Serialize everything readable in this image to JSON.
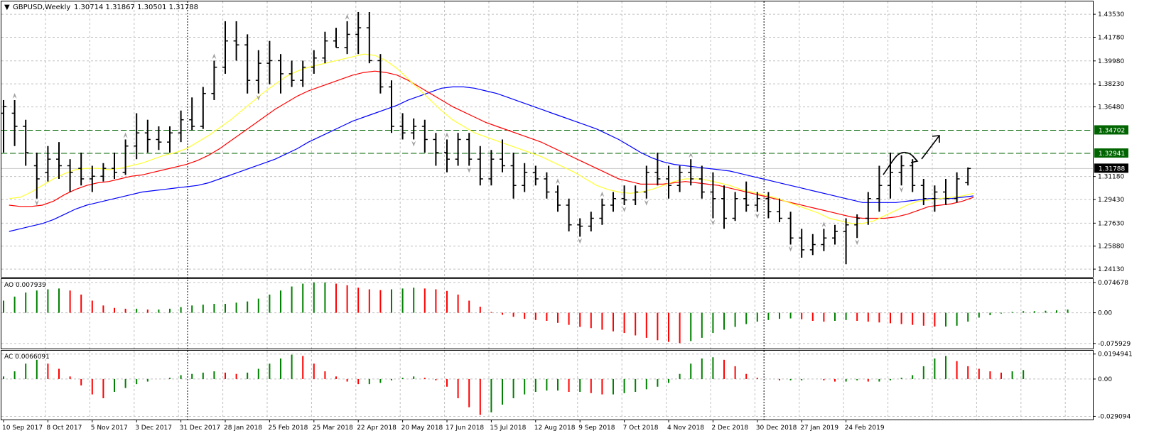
{
  "window": {
    "symbol_title": "GBPUSD,Weekly",
    "ohlc": "1.30714 1.31867 1.30501 1.31788",
    "dropdown_glyph": "▼"
  },
  "colors": {
    "background": "#ffffff",
    "grid": "#c0c0c0",
    "bars": "#000000",
    "ma_fast": "#ffff33",
    "ma_mid": "#ff0000",
    "ma_slow": "#0000ff",
    "level_lines": "#006400",
    "ao_up": "#008000",
    "ao_down": "#ff0000",
    "price_badge": "#000000",
    "level_badge": "#006400",
    "fractal": "#a0a0a0"
  },
  "main_axis": {
    "ticks": [
      "1.43530",
      "1.41780",
      "1.39980",
      "1.38230",
      "1.36480",
      "1.34702",
      "1.32941",
      "1.31180",
      "1.29430",
      "1.27630",
      "1.25880",
      "1.24130"
    ],
    "tick_values": [
      1.4353,
      1.4178,
      1.3998,
      1.3823,
      1.3648,
      1.34702,
      1.32941,
      1.3118,
      1.2943,
      1.2763,
      1.2588,
      1.2413
    ],
    "current_price": "1.31788",
    "current_price_value": 1.31788,
    "levels": [
      {
        "label": "1.34702",
        "value": 1.34702
      },
      {
        "label": "1.32941",
        "value": 1.32941
      }
    ],
    "ylim": [
      1.2365,
      1.444
    ]
  },
  "ao_panel": {
    "label": "AO 0.007939",
    "ticks": [
      "0.074678",
      "0.00",
      "-0.075929"
    ],
    "tick_values": [
      0.074678,
      0,
      -0.075929
    ],
    "ylim": [
      -0.085,
      0.08
    ],
    "values": [
      0.03,
      0.04,
      0.05,
      0.055,
      0.058,
      0.06,
      0.055,
      0.045,
      0.03,
      0.018,
      0.012,
      0.01,
      0.01,
      0.008,
      0.008,
      0.01,
      0.014,
      0.018,
      0.02,
      0.022,
      0.022,
      0.025,
      0.028,
      0.035,
      0.045,
      0.055,
      0.065,
      0.072,
      0.075,
      0.075,
      0.072,
      0.068,
      0.062,
      0.058,
      0.056,
      0.058,
      0.06,
      0.062,
      0.06,
      0.058,
      0.054,
      0.045,
      0.03,
      0.015,
      0.002,
      -0.005,
      -0.01,
      -0.015,
      -0.018,
      -0.02,
      -0.025,
      -0.03,
      -0.035,
      -0.038,
      -0.042,
      -0.046,
      -0.05,
      -0.056,
      -0.062,
      -0.068,
      -0.072,
      -0.075,
      -0.07,
      -0.062,
      -0.05,
      -0.042,
      -0.035,
      -0.028,
      -0.022,
      -0.018,
      -0.015,
      -0.014,
      -0.016,
      -0.02,
      -0.022,
      -0.02,
      -0.018,
      -0.02,
      -0.022,
      -0.024,
      -0.026,
      -0.028,
      -0.03,
      -0.032,
      -0.034,
      -0.034,
      -0.032,
      -0.022,
      -0.012,
      -0.006,
      -0.002,
      0.002,
      0.004,
      0.004,
      0.005,
      0.006,
      0.008
    ]
  },
  "ac_panel": {
    "label": "AC 0.0066091",
    "ticks": [
      "0.0194941",
      "0.00",
      "-0.029094"
    ],
    "tick_values": [
      0.0194941,
      0,
      -0.029094
    ],
    "ylim": [
      -0.0305,
      0.021
    ],
    "values": [
      0.002,
      0.006,
      0.012,
      0.015,
      0.012,
      0.008,
      0.002,
      -0.005,
      -0.012,
      -0.015,
      -0.01,
      -0.007,
      -0.004,
      -0.002,
      0,
      0.001,
      0.003,
      0.004,
      0.005,
      0.006,
      0.005,
      0.004,
      0.005,
      0.008,
      0.012,
      0.016,
      0.019,
      0.018,
      0.012,
      0.006,
      0.002,
      -0.002,
      -0.004,
      -0.004,
      -0.003,
      -0.001,
      0.001,
      0.002,
      0.001,
      -0.001,
      -0.006,
      -0.015,
      -0.022,
      -0.028,
      -0.026,
      -0.02,
      -0.015,
      -0.012,
      -0.01,
      -0.009,
      -0.009,
      -0.01,
      -0.01,
      -0.011,
      -0.012,
      -0.012,
      -0.011,
      -0.01,
      -0.008,
      -0.006,
      -0.003,
      0.004,
      0.012,
      0.016,
      0.017,
      0.015,
      0.01,
      0.004,
      0.001,
      0,
      -0.001,
      -0.001,
      -0.001,
      0,
      -0.001,
      -0.002,
      -0.002,
      -0.001,
      -0.002,
      -0.002,
      -0.001,
      0.001,
      0.003,
      0.01,
      0.016,
      0.018,
      0.014,
      0.01,
      0.008,
      0.006,
      0.005,
      0.006,
      0.007
    ]
  },
  "time_axis": {
    "labels": [
      {
        "text": "10 Sep 2017",
        "bar": 0
      },
      {
        "text": "8 Oct 2017",
        "bar": 4
      },
      {
        "text": "5 Nov 2017",
        "bar": 8
      },
      {
        "text": "3 Dec 2017",
        "bar": 12
      },
      {
        "text": "31 Dec 2017",
        "bar": 16
      },
      {
        "text": "28 Jan 2018",
        "bar": 20
      },
      {
        "text": "25 Feb 2018",
        "bar": 24
      },
      {
        "text": "25 Mar 2018",
        "bar": 28
      },
      {
        "text": "22 Apr 2018",
        "bar": 32
      },
      {
        "text": "20 May 2018",
        "bar": 36
      },
      {
        "text": "17 Jun 2018",
        "bar": 40
      },
      {
        "text": "15 Jul 2018",
        "bar": 44
      },
      {
        "text": "12 Aug 2018",
        "bar": 48
      },
      {
        "text": "9 Sep 2018",
        "bar": 52
      },
      {
        "text": "7 Oct 2018",
        "bar": 56
      },
      {
        "text": "4 Nov 2018",
        "bar": 60
      },
      {
        "text": "2 Dec 2018",
        "bar": 64
      },
      {
        "text": "30 Dec 2018",
        "bar": 68
      },
      {
        "text": "27 Jan 2019",
        "bar": 72
      },
      {
        "text": "24 Feb 2019",
        "bar": 76
      }
    ],
    "separators_at_bars": [
      16.6,
      68.6
    ]
  },
  "chart_data": {
    "type": "ohlc",
    "timeframe": "Weekly",
    "bars": [
      {
        "o": 1.36,
        "h": 1.37,
        "l": 1.33,
        "c": 1.365
      },
      {
        "o": 1.36,
        "h": 1.37,
        "l": 1.335,
        "c": 1.35
      },
      {
        "o": 1.35,
        "h": 1.355,
        "l": 1.32,
        "c": 1.33
      },
      {
        "o": 1.32,
        "h": 1.33,
        "l": 1.295,
        "c": 1.31
      },
      {
        "o": 1.315,
        "h": 1.335,
        "l": 1.308,
        "c": 1.325
      },
      {
        "o": 1.325,
        "h": 1.338,
        "l": 1.31,
        "c": 1.32
      },
      {
        "o": 1.32,
        "h": 1.325,
        "l": 1.3,
        "c": 1.315
      },
      {
        "o": 1.318,
        "h": 1.33,
        "l": 1.305,
        "c": 1.31
      },
      {
        "o": 1.31,
        "h": 1.32,
        "l": 1.3,
        "c": 1.312
      },
      {
        "o": 1.312,
        "h": 1.322,
        "l": 1.308,
        "c": 1.318
      },
      {
        "o": 1.318,
        "h": 1.33,
        "l": 1.31,
        "c": 1.315
      },
      {
        "o": 1.315,
        "h": 1.34,
        "l": 1.313,
        "c": 1.335
      },
      {
        "o": 1.335,
        "h": 1.36,
        "l": 1.325,
        "c": 1.345
      },
      {
        "o": 1.345,
        "h": 1.355,
        "l": 1.33,
        "c": 1.34
      },
      {
        "o": 1.34,
        "h": 1.35,
        "l": 1.332,
        "c": 1.338
      },
      {
        "o": 1.338,
        "h": 1.35,
        "l": 1.33,
        "c": 1.345
      },
      {
        "o": 1.345,
        "h": 1.362,
        "l": 1.338,
        "c": 1.355
      },
      {
        "o": 1.355,
        "h": 1.372,
        "l": 1.347,
        "c": 1.35
      },
      {
        "o": 1.35,
        "h": 1.38,
        "l": 1.348,
        "c": 1.375
      },
      {
        "o": 1.375,
        "h": 1.4,
        "l": 1.37,
        "c": 1.395
      },
      {
        "o": 1.395,
        "h": 1.43,
        "l": 1.39,
        "c": 1.415
      },
      {
        "o": 1.415,
        "h": 1.43,
        "l": 1.4,
        "c": 1.412
      },
      {
        "o": 1.412,
        "h": 1.42,
        "l": 1.375,
        "c": 1.385
      },
      {
        "o": 1.385,
        "h": 1.408,
        "l": 1.375,
        "c": 1.398
      },
      {
        "o": 1.398,
        "h": 1.415,
        "l": 1.382,
        "c": 1.4
      },
      {
        "o": 1.4,
        "h": 1.405,
        "l": 1.375,
        "c": 1.39
      },
      {
        "o": 1.39,
        "h": 1.4,
        "l": 1.38,
        "c": 1.385
      },
      {
        "o": 1.385,
        "h": 1.4,
        "l": 1.38,
        "c": 1.395
      },
      {
        "o": 1.395,
        "h": 1.408,
        "l": 1.39,
        "c": 1.402
      },
      {
        "o": 1.402,
        "h": 1.422,
        "l": 1.398,
        "c": 1.415
      },
      {
        "o": 1.415,
        "h": 1.425,
        "l": 1.41,
        "c": 1.41
      },
      {
        "o": 1.41,
        "h": 1.43,
        "l": 1.405,
        "c": 1.42
      },
      {
        "o": 1.42,
        "h": 1.437,
        "l": 1.405,
        "c": 1.425
      },
      {
        "o": 1.425,
        "h": 1.437,
        "l": 1.398,
        "c": 1.4
      },
      {
        "o": 1.4,
        "h": 1.405,
        "l": 1.375,
        "c": 1.38
      },
      {
        "o": 1.38,
        "h": 1.385,
        "l": 1.345,
        "c": 1.35
      },
      {
        "o": 1.35,
        "h": 1.36,
        "l": 1.34,
        "c": 1.345
      },
      {
        "o": 1.345,
        "h": 1.356,
        "l": 1.34,
        "c": 1.35
      },
      {
        "o": 1.35,
        "h": 1.355,
        "l": 1.33,
        "c": 1.34
      },
      {
        "o": 1.34,
        "h": 1.345,
        "l": 1.32,
        "c": 1.33
      },
      {
        "o": 1.33,
        "h": 1.34,
        "l": 1.315,
        "c": 1.325
      },
      {
        "o": 1.325,
        "h": 1.345,
        "l": 1.32,
        "c": 1.34
      },
      {
        "o": 1.34,
        "h": 1.345,
        "l": 1.32,
        "c": 1.325
      },
      {
        "o": 1.325,
        "h": 1.335,
        "l": 1.305,
        "c": 1.31
      },
      {
        "o": 1.31,
        "h": 1.332,
        "l": 1.305,
        "c": 1.325
      },
      {
        "o": 1.325,
        "h": 1.34,
        "l": 1.315,
        "c": 1.32
      },
      {
        "o": 1.32,
        "h": 1.33,
        "l": 1.295,
        "c": 1.305
      },
      {
        "o": 1.305,
        "h": 1.322,
        "l": 1.3,
        "c": 1.315
      },
      {
        "o": 1.315,
        "h": 1.32,
        "l": 1.305,
        "c": 1.31
      },
      {
        "o": 1.31,
        "h": 1.315,
        "l": 1.295,
        "c": 1.3
      },
      {
        "o": 1.3,
        "h": 1.305,
        "l": 1.285,
        "c": 1.29
      },
      {
        "o": 1.29,
        "h": 1.295,
        "l": 1.27,
        "c": 1.275
      },
      {
        "o": 1.275,
        "h": 1.28,
        "l": 1.266,
        "c": 1.274
      },
      {
        "o": 1.274,
        "h": 1.285,
        "l": 1.27,
        "c": 1.28
      },
      {
        "o": 1.28,
        "h": 1.295,
        "l": 1.275,
        "c": 1.29
      },
      {
        "o": 1.29,
        "h": 1.3,
        "l": 1.285,
        "c": 1.295
      },
      {
        "o": 1.295,
        "h": 1.305,
        "l": 1.29,
        "c": 1.294
      },
      {
        "o": 1.294,
        "h": 1.305,
        "l": 1.29,
        "c": 1.3
      },
      {
        "o": 1.3,
        "h": 1.32,
        "l": 1.295,
        "c": 1.315
      },
      {
        "o": 1.315,
        "h": 1.33,
        "l": 1.305,
        "c": 1.31
      },
      {
        "o": 1.31,
        "h": 1.32,
        "l": 1.295,
        "c": 1.305
      },
      {
        "o": 1.305,
        "h": 1.32,
        "l": 1.3,
        "c": 1.315
      },
      {
        "o": 1.315,
        "h": 1.325,
        "l": 1.305,
        "c": 1.31
      },
      {
        "o": 1.31,
        "h": 1.32,
        "l": 1.295,
        "c": 1.3
      },
      {
        "o": 1.3,
        "h": 1.315,
        "l": 1.28,
        "c": 1.295
      },
      {
        "o": 1.295,
        "h": 1.305,
        "l": 1.272,
        "c": 1.28
      },
      {
        "o": 1.28,
        "h": 1.3,
        "l": 1.278,
        "c": 1.295
      },
      {
        "o": 1.295,
        "h": 1.308,
        "l": 1.285,
        "c": 1.29
      },
      {
        "o": 1.29,
        "h": 1.3,
        "l": 1.285,
        "c": 1.295
      },
      {
        "o": 1.295,
        "h": 1.3,
        "l": 1.28,
        "c": 1.285
      },
      {
        "o": 1.285,
        "h": 1.295,
        "l": 1.277,
        "c": 1.28
      },
      {
        "o": 1.28,
        "h": 1.285,
        "l": 1.26,
        "c": 1.265
      },
      {
        "o": 1.265,
        "h": 1.272,
        "l": 1.25,
        "c": 1.256
      },
      {
        "o": 1.256,
        "h": 1.268,
        "l": 1.252,
        "c": 1.26
      },
      {
        "o": 1.26,
        "h": 1.272,
        "l": 1.255,
        "c": 1.265
      },
      {
        "o": 1.265,
        "h": 1.275,
        "l": 1.26,
        "c": 1.27
      },
      {
        "o": 1.27,
        "h": 1.28,
        "l": 1.245,
        "c": 1.275
      },
      {
        "o": 1.275,
        "h": 1.283,
        "l": 1.265,
        "c": 1.28
      },
      {
        "o": 1.28,
        "h": 1.3,
        "l": 1.275,
        "c": 1.295
      },
      {
        "o": 1.295,
        "h": 1.32,
        "l": 1.285,
        "c": 1.305
      },
      {
        "o": 1.305,
        "h": 1.33,
        "l": 1.295,
        "c": 1.315
      },
      {
        "o": 1.315,
        "h": 1.328,
        "l": 1.305,
        "c": 1.32
      },
      {
        "o": 1.32,
        "h": 1.325,
        "l": 1.3,
        "c": 1.305
      },
      {
        "o": 1.305,
        "h": 1.31,
        "l": 1.29,
        "c": 1.295
      },
      {
        "o": 1.295,
        "h": 1.305,
        "l": 1.285,
        "c": 1.3
      },
      {
        "o": 1.3,
        "h": 1.31,
        "l": 1.29,
        "c": 1.295
      },
      {
        "o": 1.295,
        "h": 1.315,
        "l": 1.292,
        "c": 1.31
      },
      {
        "o": 1.3071,
        "h": 1.3187,
        "l": 1.305,
        "c": 1.3179
      }
    ],
    "ma_fast": [
      1.295,
      1.296,
      1.3,
      1.305,
      1.31,
      1.314,
      1.317,
      1.318,
      1.318,
      1.317,
      1.318,
      1.32,
      1.322,
      1.325,
      1.328,
      1.33,
      1.333,
      1.338,
      1.343,
      1.349,
      1.355,
      1.362,
      1.369,
      1.376,
      1.382,
      1.388,
      1.392,
      1.395,
      1.397,
      1.399,
      1.401,
      1.403,
      1.405,
      1.404,
      1.4,
      1.394,
      1.386,
      1.378,
      1.37,
      1.362,
      1.355,
      1.35,
      1.345,
      1.342,
      1.339,
      1.336,
      1.333,
      1.33,
      1.327,
      1.323,
      1.319,
      1.315,
      1.31,
      1.305,
      1.302,
      1.3,
      1.299,
      1.3,
      1.302,
      1.305,
      1.308,
      1.31,
      1.31,
      1.309,
      1.307,
      1.305,
      1.302,
      1.3,
      1.298,
      1.296,
      1.293,
      1.29,
      1.287,
      1.284,
      1.28,
      1.278,
      1.276,
      1.276,
      1.278,
      1.282,
      1.286,
      1.29,
      1.293,
      1.294,
      1.295,
      1.296,
      1.297,
      1.299
    ],
    "ma_mid": [
      1.29,
      1.289,
      1.289,
      1.29,
      1.293,
      1.298,
      1.302,
      1.305,
      1.307,
      1.308,
      1.31,
      1.312,
      1.313,
      1.315,
      1.317,
      1.319,
      1.321,
      1.324,
      1.328,
      1.333,
      1.339,
      1.345,
      1.351,
      1.357,
      1.363,
      1.368,
      1.373,
      1.377,
      1.38,
      1.383,
      1.386,
      1.389,
      1.391,
      1.392,
      1.391,
      1.389,
      1.385,
      1.38,
      1.375,
      1.37,
      1.365,
      1.361,
      1.357,
      1.353,
      1.35,
      1.347,
      1.344,
      1.341,
      1.338,
      1.334,
      1.33,
      1.326,
      1.322,
      1.318,
      1.314,
      1.31,
      1.308,
      1.306,
      1.306,
      1.306,
      1.307,
      1.308,
      1.307,
      1.306,
      1.305,
      1.303,
      1.301,
      1.299,
      1.297,
      1.295,
      1.293,
      1.291,
      1.289,
      1.287,
      1.285,
      1.283,
      1.281,
      1.28,
      1.28,
      1.28,
      1.281,
      1.283,
      1.286,
      1.289,
      1.29,
      1.291,
      1.293,
      1.296
    ],
    "ma_slow": [
      1.27,
      1.272,
      1.274,
      1.276,
      1.279,
      1.283,
      1.287,
      1.29,
      1.292,
      1.294,
      1.296,
      1.298,
      1.3,
      1.301,
      1.302,
      1.303,
      1.304,
      1.305,
      1.307,
      1.31,
      1.313,
      1.316,
      1.319,
      1.322,
      1.325,
      1.329,
      1.333,
      1.338,
      1.342,
      1.346,
      1.35,
      1.354,
      1.357,
      1.36,
      1.363,
      1.366,
      1.37,
      1.373,
      1.376,
      1.379,
      1.38,
      1.38,
      1.379,
      1.377,
      1.375,
      1.372,
      1.369,
      1.366,
      1.363,
      1.36,
      1.357,
      1.354,
      1.351,
      1.348,
      1.344,
      1.34,
      1.335,
      1.33,
      1.326,
      1.323,
      1.321,
      1.32,
      1.319,
      1.318,
      1.317,
      1.316,
      1.314,
      1.312,
      1.31,
      1.308,
      1.306,
      1.304,
      1.302,
      1.3,
      1.298,
      1.296,
      1.294,
      1.292,
      1.292,
      1.292,
      1.292,
      1.293,
      1.294,
      1.295,
      1.295,
      1.295,
      1.296,
      1.297
    ],
    "fractals_up": [
      1,
      11,
      19,
      31,
      40,
      50,
      54,
      62,
      74
    ],
    "fractals_down": [
      3,
      23,
      37,
      42,
      52,
      56,
      58,
      64,
      68,
      71,
      77,
      81
    ]
  }
}
